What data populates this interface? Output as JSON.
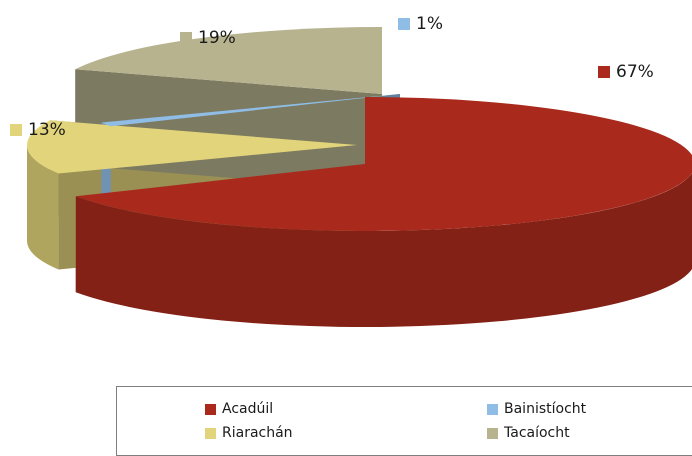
{
  "chart_data": {
    "type": "pie",
    "title": "",
    "categories": [
      "Acadúil",
      "Bainistíocht",
      "Riarachán",
      "Tacaíocht"
    ],
    "values": [
      67,
      1,
      13,
      19
    ],
    "data_labels": [
      "67%",
      "1%",
      "13%",
      "19%"
    ],
    "colors": [
      "#a92a1c",
      "#8fbde6",
      "#e2d47a",
      "#b7b38f"
    ],
    "legend_position": "bottom",
    "grid": false
  }
}
